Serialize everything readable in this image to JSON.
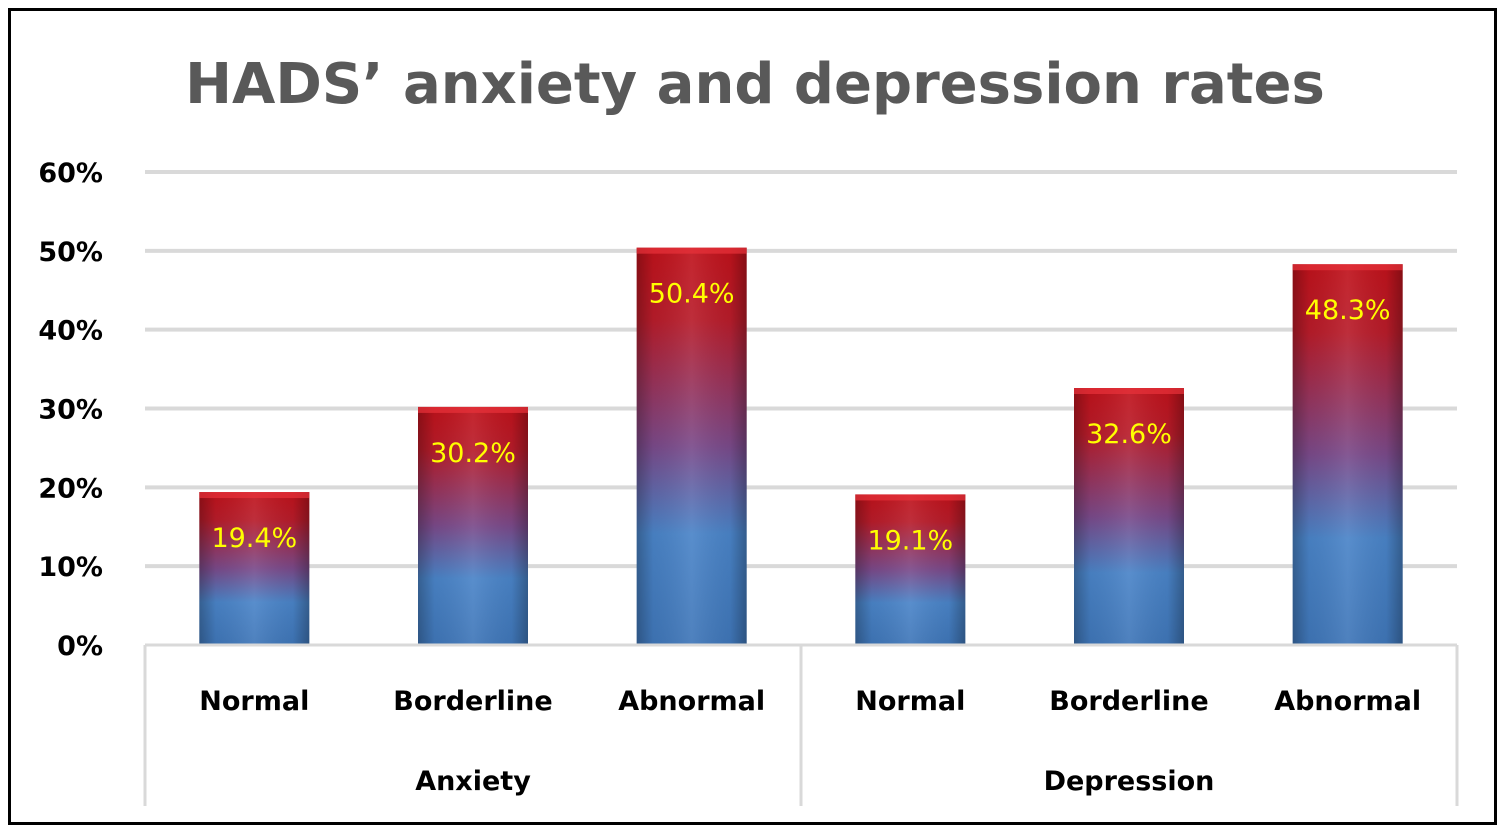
{
  "chart_data": {
    "type": "bar",
    "title": "HADS’ anxiety and depression rates",
    "groups": [
      {
        "name": "Anxiety",
        "categories": [
          "Normal",
          "Borderline",
          "Abnormal"
        ],
        "values": [
          19.4,
          30.2,
          50.4
        ],
        "labels": [
          "19.4%",
          "30.2%",
          "50.4%"
        ]
      },
      {
        "name": "Depression",
        "categories": [
          "Normal",
          "Borderline",
          "Abnormal"
        ],
        "values": [
          19.1,
          32.6,
          48.3
        ],
        "labels": [
          "19.1%",
          "32.6%",
          "48.3%"
        ]
      }
    ],
    "ylim": [
      0,
      60
    ],
    "yticks": [
      "0%",
      "10%",
      "20%",
      "30%",
      "40%",
      "50%",
      "60%"
    ],
    "ytick_values": [
      0,
      10,
      20,
      30,
      40,
      50,
      60
    ],
    "grid": true,
    "legend": "none"
  },
  "colors": {
    "bar_top": "#c0121b",
    "bar_bottom": "#4a84c8",
    "gridline": "#d9d9d9",
    "label": "#ffff00",
    "title": "#595959"
  }
}
